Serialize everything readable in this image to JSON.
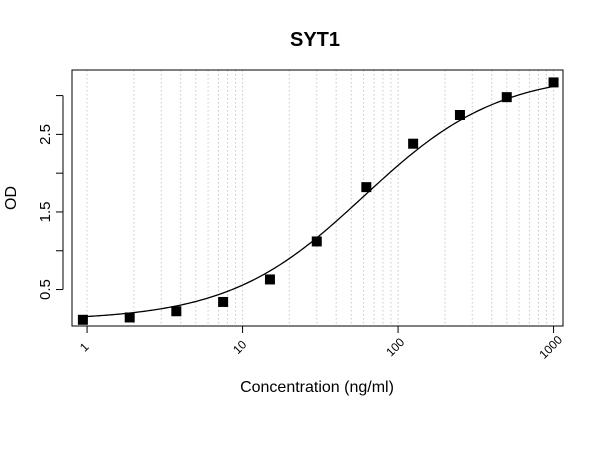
{
  "chart_data": {
    "type": "scatter",
    "title": "SYT1",
    "xlabel": "Concentration (ng/ml)",
    "ylabel": "OD",
    "x_scale": "log",
    "xlim": [
      0.8,
      1150
    ],
    "ylim": [
      0.03,
      3.33
    ],
    "x_ticks": [
      1,
      10,
      100,
      1000
    ],
    "x_tick_labels": [
      "1",
      "10",
      "100",
      "1000"
    ],
    "y_ticks": [
      0.5,
      1,
      1.5,
      2,
      2.5,
      3
    ],
    "y_tick_labels": [
      "0.5",
      "1.5",
      "2.5"
    ],
    "grid": "vertical dotted lines at log minor ticks",
    "legend": "none",
    "series": [
      {
        "marker": "square",
        "color": "#000000",
        "points": [
          {
            "x": 0.94,
            "y": 0.11
          },
          {
            "x": 1.88,
            "y": 0.14
          },
          {
            "x": 3.75,
            "y": 0.22
          },
          {
            "x": 7.5,
            "y": 0.34
          },
          {
            "x": 15,
            "y": 0.63
          },
          {
            "x": 30,
            "y": 1.12
          },
          {
            "x": 62.5,
            "y": 1.82
          },
          {
            "x": 125,
            "y": 2.38
          },
          {
            "x": 250,
            "y": 2.75
          },
          {
            "x": 500,
            "y": 2.98
          },
          {
            "x": 1000,
            "y": 3.17
          }
        ]
      }
    ],
    "fit_curve": {
      "type": "4PL",
      "color": "#000000",
      "params": {
        "bottom": 0.1,
        "top": 3.3,
        "ec50": 60,
        "hill": 1.0
      }
    }
  }
}
